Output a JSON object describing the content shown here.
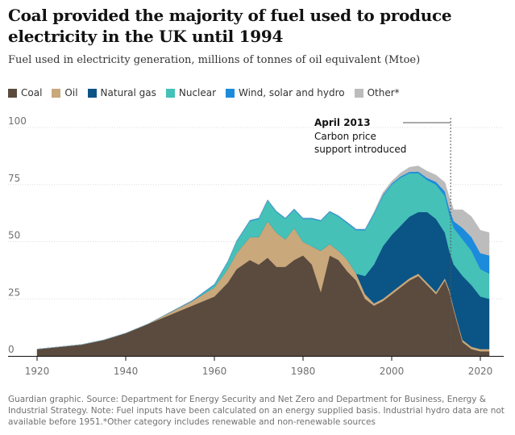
{
  "chart_data": {
    "type": "area",
    "stacked": true,
    "title": "Coal provided the majority of fuel used to produce electricity in the UK until 1994",
    "subtitle": "Fuel used in electricity generation, millions of tonnes of oil equivalent (Mtoe)",
    "xlabel": "",
    "ylabel": "",
    "xlim": [
      1920,
      2022
    ],
    "ylim": [
      0,
      100
    ],
    "x_ticks": [
      "1920",
      "1940",
      "1960",
      "1980",
      "2000",
      "2020"
    ],
    "y_ticks": [
      "0",
      "25",
      "50",
      "75",
      "100"
    ],
    "legend_position": "top-left",
    "grid": true,
    "x": [
      1920,
      1925,
      1930,
      1935,
      1940,
      1945,
      1950,
      1955,
      1960,
      1963,
      1965,
      1968,
      1970,
      1972,
      1974,
      1976,
      1978,
      1980,
      1982,
      1984,
      1986,
      1988,
      1990,
      1992,
      1994,
      1996,
      1998,
      2000,
      2002,
      2004,
      2006,
      2008,
      2010,
      2012,
      2013,
      2014,
      2016,
      2018,
      2020,
      2022
    ],
    "series": [
      {
        "name": "Coal",
        "color": "#5b4b3e",
        "values": [
          3,
          4,
          5,
          7,
          10,
          14,
          18,
          22,
          26,
          32,
          38,
          42,
          40,
          43,
          39,
          39,
          42,
          44,
          40,
          28,
          44,
          42,
          37,
          33,
          25,
          22,
          24,
          27,
          30,
          33,
          35,
          31,
          27,
          33,
          28,
          20,
          6,
          3,
          2,
          2
        ]
      },
      {
        "name": "Oil",
        "color": "#c9a87b",
        "values": [
          0,
          0,
          0,
          0,
          0,
          0,
          1,
          2,
          4,
          6,
          7,
          10,
          12,
          16,
          15,
          12,
          14,
          6,
          8,
          18,
          5,
          4,
          5,
          3,
          2,
          1,
          1,
          1,
          1,
          1,
          1,
          1,
          1,
          1,
          1,
          1,
          1,
          1,
          1,
          1
        ]
      },
      {
        "name": "Natural gas",
        "color": "#0b5486",
        "values": [
          0,
          0,
          0,
          0,
          0,
          0,
          0,
          0,
          0,
          0,
          0,
          0,
          0,
          0,
          0,
          0,
          0,
          0,
          0,
          0,
          0,
          0,
          0,
          0,
          8,
          17,
          23,
          25,
          26,
          27,
          27,
          31,
          32,
          20,
          17,
          19,
          28,
          27,
          23,
          22
        ]
      },
      {
        "name": "Nuclear",
        "color": "#45c1b8",
        "values": [
          0,
          0,
          0,
          0,
          0,
          0,
          0,
          0,
          1,
          3,
          5,
          7,
          8,
          9,
          9,
          9,
          8,
          10,
          12,
          13,
          14,
          15,
          16,
          19,
          20,
          22,
          22,
          22,
          21,
          19,
          17,
          14,
          15,
          16,
          16,
          16,
          16,
          15,
          12,
          11
        ]
      },
      {
        "name": "Wind, solar and hydro",
        "color": "#1c8bdb",
        "values": [
          0,
          0,
          0,
          0,
          0,
          0,
          0.2,
          0.3,
          0.4,
          0.4,
          0.4,
          0.4,
          0.4,
          0.4,
          0.4,
          0.4,
          0.4,
          0.4,
          0.4,
          0.4,
          0.4,
          0.4,
          0.5,
          0.5,
          0.5,
          0.5,
          0.5,
          0.5,
          0.6,
          0.6,
          0.7,
          0.9,
          1.2,
          2,
          2.5,
          3,
          5,
          6,
          7,
          8
        ]
      },
      {
        "name": "Other*",
        "color": "#bcbcbc",
        "values": [
          0,
          0,
          0,
          0,
          0,
          0,
          0,
          0,
          0,
          0,
          0,
          0,
          0,
          0,
          0,
          0,
          0,
          0,
          0,
          0,
          0,
          0,
          0,
          0,
          0,
          0.5,
          1,
          1,
          1.5,
          2,
          2.5,
          3,
          3,
          4,
          5,
          5,
          8,
          9,
          10,
          10
        ]
      }
    ],
    "annotations": [
      {
        "x": 2013.3,
        "title": "April 2013",
        "lines": [
          "Carbon price",
          "support introduced"
        ]
      }
    ]
  },
  "footnote": "Guardian graphic. Source: Department for Energy Security and Net Zero and Department for Business, Energy & Industrial Strategy. Note: Fuel inputs have been calculated on an energy supplied basis. Industrial hydro data are not available before 1951.*Other category includes renewable and non-renewable sources"
}
